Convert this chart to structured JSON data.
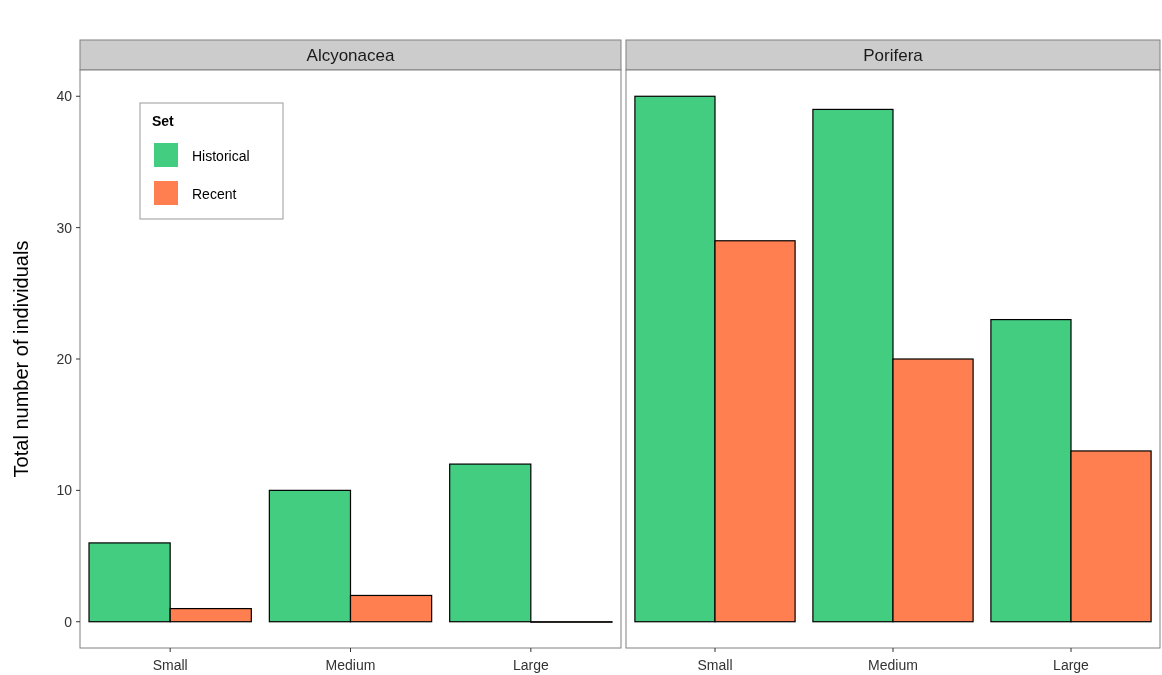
{
  "chart_data": [
    {
      "type": "bar",
      "title": "Alcyonacea",
      "categories": [
        "Small",
        "Medium",
        "Large"
      ],
      "ylabel": "Total number of individuals",
      "ylim": [
        -2,
        42
      ],
      "yticks": [
        0,
        10,
        20,
        30,
        40
      ],
      "legend": "top left",
      "legend_title": "Set",
      "grid": false,
      "series": [
        {
          "name": "Historical",
          "color": "#43cd80",
          "values": [
            6,
            10,
            12
          ]
        },
        {
          "name": "Recent",
          "color": "#ff7f50",
          "values": [
            1,
            2,
            0
          ]
        }
      ]
    },
    {
      "type": "bar",
      "title": "Porifera",
      "categories": [
        "Small",
        "Medium",
        "Large"
      ],
      "ylim": [
        -2,
        42
      ],
      "tick_labels": "x",
      "grid": false,
      "series": [
        {
          "color": "#43cd80",
          "values": [
            40,
            39,
            23
          ]
        },
        {
          "color": "#ff7f50",
          "values": [
            29,
            20,
            13
          ]
        }
      ]
    }
  ]
}
